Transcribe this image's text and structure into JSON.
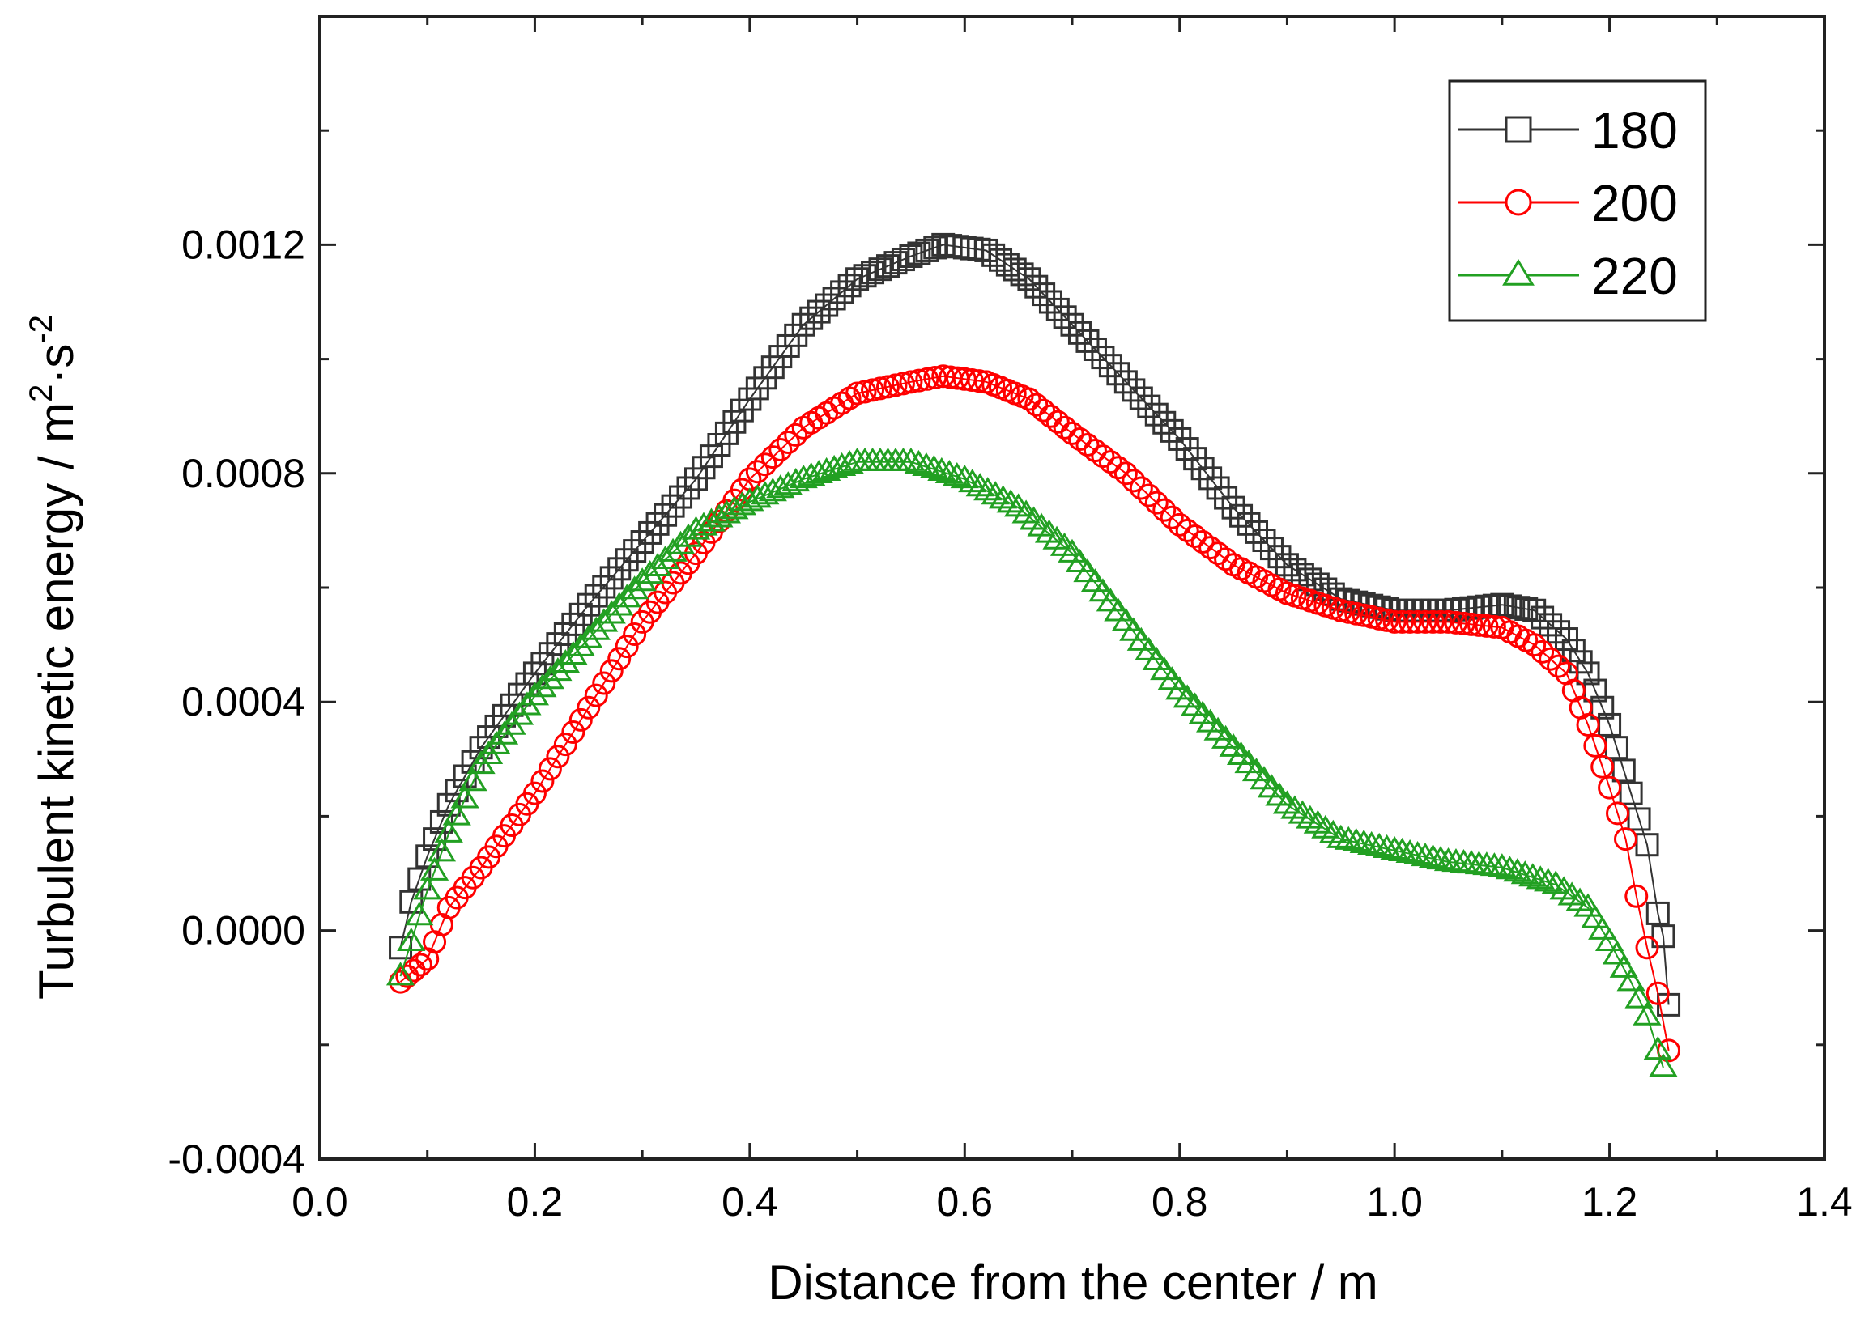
{
  "chart_data": {
    "type": "scatter",
    "title": "",
    "xlabel": "Distance from the center / m",
    "ylabel": {
      "base": "Turbulent kinetic energy / m",
      "exp1": "2",
      "mid": "·s",
      "exp2": "-2"
    },
    "xlim": [
      0.0,
      1.4
    ],
    "ylim": [
      -0.0004,
      0.0016
    ],
    "x_ticks": [
      0.0,
      0.2,
      0.4,
      0.6,
      0.8,
      1.0,
      1.2,
      1.4
    ],
    "x_tick_labels": [
      "0.0",
      "0.2",
      "0.4",
      "0.6",
      "0.8",
      "1.0",
      "1.2",
      "1.4"
    ],
    "y_ticks": [
      -0.0004,
      0.0,
      0.0004,
      0.0008,
      0.0012
    ],
    "y_tick_labels": [
      "-0.0004",
      "0.0000",
      "0.0004",
      "0.0008",
      "0.0012"
    ],
    "legend_position": "top-right",
    "grid": false,
    "series": [
      {
        "name": "180",
        "marker": "square",
        "color": "#333333",
        "points": [
          [
            0.075,
            -3e-05
          ],
          [
            0.085,
            5e-05
          ],
          [
            0.1,
            0.00013
          ],
          [
            0.12,
            0.00022
          ],
          [
            0.15,
            0.00032
          ],
          [
            0.2,
            0.00045
          ],
          [
            0.25,
            0.00057
          ],
          [
            0.3,
            0.00068
          ],
          [
            0.35,
            0.00079
          ],
          [
            0.4,
            0.00093
          ],
          [
            0.45,
            0.00106
          ],
          [
            0.5,
            0.00114
          ],
          [
            0.55,
            0.00118
          ],
          [
            0.58,
            0.0012
          ],
          [
            0.62,
            0.00119
          ],
          [
            0.66,
            0.00114
          ],
          [
            0.7,
            0.00106
          ],
          [
            0.75,
            0.00096
          ],
          [
            0.8,
            0.00086
          ],
          [
            0.85,
            0.00074
          ],
          [
            0.9,
            0.00064
          ],
          [
            0.95,
            0.00058
          ],
          [
            1.0,
            0.00056
          ],
          [
            1.05,
            0.00056
          ],
          [
            1.1,
            0.00057
          ],
          [
            1.13,
            0.00056
          ],
          [
            1.16,
            0.00051
          ],
          [
            1.18,
            0.00045
          ],
          [
            1.2,
            0.00036
          ],
          [
            1.22,
            0.00024
          ],
          [
            1.235,
            0.00015
          ],
          [
            1.245,
            3e-05
          ],
          [
            1.25,
            -1e-05
          ],
          [
            1.255,
            -0.00013
          ]
        ]
      },
      {
        "name": "200",
        "marker": "circle",
        "color": "#ff0000",
        "points": [
          [
            0.075,
            -9e-05
          ],
          [
            0.1,
            -5e-05
          ],
          [
            0.12,
            4e-05
          ],
          [
            0.15,
            0.00011
          ],
          [
            0.2,
            0.00024
          ],
          [
            0.25,
            0.00039
          ],
          [
            0.3,
            0.00054
          ],
          [
            0.35,
            0.00066
          ],
          [
            0.4,
            0.00079
          ],
          [
            0.45,
            0.00088
          ],
          [
            0.5,
            0.00094
          ],
          [
            0.55,
            0.00096
          ],
          [
            0.58,
            0.00097
          ],
          [
            0.62,
            0.00096
          ],
          [
            0.66,
            0.00093
          ],
          [
            0.7,
            0.00087
          ],
          [
            0.75,
            0.0008
          ],
          [
            0.8,
            0.00071
          ],
          [
            0.85,
            0.00064
          ],
          [
            0.9,
            0.00059
          ],
          [
            0.95,
            0.00056
          ],
          [
            1.0,
            0.00054
          ],
          [
            1.05,
            0.00054
          ],
          [
            1.1,
            0.00053
          ],
          [
            1.13,
            0.0005
          ],
          [
            1.16,
            0.00045
          ],
          [
            1.18,
            0.00036
          ],
          [
            1.2,
            0.00025
          ],
          [
            1.215,
            0.00016
          ],
          [
            1.225,
            6e-05
          ],
          [
            1.235,
            -3e-05
          ],
          [
            1.245,
            -0.00011
          ],
          [
            1.255,
            -0.00021
          ]
        ]
      },
      {
        "name": "220",
        "marker": "triangle",
        "color": "#22a022",
        "points": [
          [
            0.075,
            -8e-05
          ],
          [
            0.085,
            -2e-05
          ],
          [
            0.1,
            7e-05
          ],
          [
            0.12,
            0.00017
          ],
          [
            0.15,
            0.00029
          ],
          [
            0.2,
            0.00041
          ],
          [
            0.25,
            0.00051
          ],
          [
            0.3,
            0.00061
          ],
          [
            0.35,
            0.0007
          ],
          [
            0.4,
            0.00075
          ],
          [
            0.45,
            0.00079
          ],
          [
            0.5,
            0.00082
          ],
          [
            0.55,
            0.00082
          ],
          [
            0.6,
            0.00079
          ],
          [
            0.65,
            0.00074
          ],
          [
            0.7,
            0.00066
          ],
          [
            0.75,
            0.00054
          ],
          [
            0.8,
            0.00042
          ],
          [
            0.85,
            0.00032
          ],
          [
            0.9,
            0.00022
          ],
          [
            0.95,
            0.00016
          ],
          [
            1.0,
            0.00014
          ],
          [
            1.05,
            0.00012
          ],
          [
            1.1,
            0.00011
          ],
          [
            1.15,
            8e-05
          ],
          [
            1.18,
            4e-05
          ],
          [
            1.2,
            -2e-05
          ],
          [
            1.22,
            -9e-05
          ],
          [
            1.235,
            -0.00015
          ],
          [
            1.245,
            -0.00021
          ],
          [
            1.25,
            -0.00024
          ]
        ]
      }
    ]
  }
}
